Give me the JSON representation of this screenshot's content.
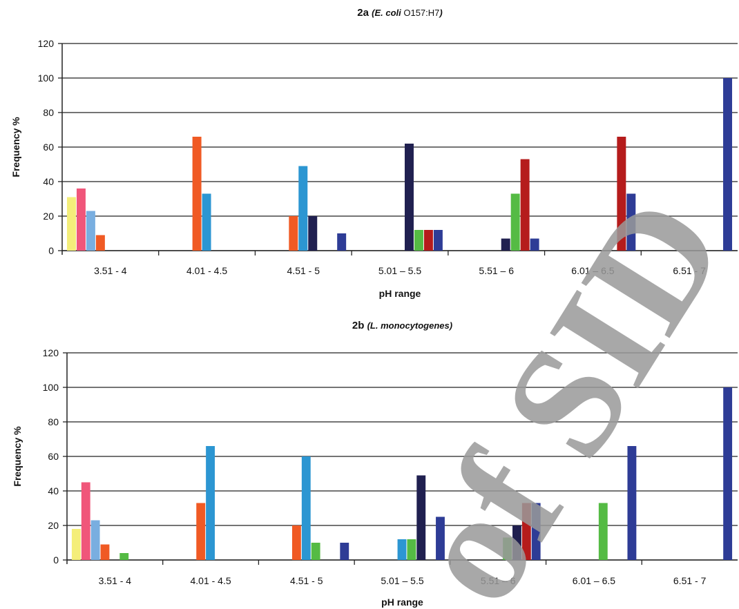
{
  "watermark": "of SID",
  "chart_data": [
    {
      "type": "bar",
      "title": "2a",
      "title_italic": "(E. coli",
      "title_regular": "O157:H7",
      "title_close": ")",
      "xlabel": "pH range",
      "ylabel": "Frequency %",
      "ylim": [
        0,
        120
      ],
      "yticks": [
        0,
        20,
        40,
        60,
        80,
        100,
        120
      ],
      "grid": true,
      "categories": [
        "3.51 - 4",
        "4.01 - 4.5",
        "4.51 - 5",
        "5.01 – 5.5",
        "5.51 – 6",
        "6.01 – 6.5",
        "6.51 - 7"
      ],
      "series": [
        {
          "color": "#f4ee7a",
          "values": [
            31,
            0,
            0,
            0,
            0,
            0,
            0
          ]
        },
        {
          "color": "#f0567a",
          "values": [
            36,
            0,
            0,
            0,
            0,
            0,
            0
          ]
        },
        {
          "color": "#79aee0",
          "values": [
            23,
            0,
            0,
            0,
            0,
            0,
            0
          ]
        },
        {
          "color": "#f05a24",
          "values": [
            9,
            66,
            20,
            0,
            0,
            0,
            0
          ]
        },
        {
          "color": "#2c96d2",
          "values": [
            0,
            33,
            49,
            0,
            0,
            0,
            0
          ]
        },
        {
          "color": "#202050",
          "values": [
            0,
            0,
            20,
            62,
            7,
            0,
            0
          ]
        },
        {
          "color": "#55bb44",
          "values": [
            0,
            0,
            0,
            12,
            33,
            0,
            0
          ]
        },
        {
          "color": "#b51c1c",
          "values": [
            0,
            0,
            0,
            12,
            53,
            66,
            0
          ]
        },
        {
          "color": "#2e3c96",
          "values": [
            0,
            0,
            10,
            12,
            7,
            33,
            100
          ]
        }
      ]
    },
    {
      "type": "bar",
      "title": "2b",
      "title_italic": "(L. monocytogenes)",
      "title_regular": "",
      "title_close": "",
      "xlabel": "pH range",
      "ylabel": "Frequency %",
      "ylim": [
        0,
        120
      ],
      "yticks": [
        0,
        20,
        40,
        60,
        80,
        100,
        120
      ],
      "grid": true,
      "categories": [
        "3.51 - 4",
        "4.01 - 4.5",
        "4.51 - 5",
        "5.01 – 5.5",
        "5.51 – 6",
        "6.01 – 6.5",
        "6.51 - 7"
      ],
      "series": [
        {
          "color": "#f4ee7a",
          "values": [
            18,
            0,
            0,
            0,
            0,
            0,
            0
          ]
        },
        {
          "color": "#f0567a",
          "values": [
            45,
            0,
            0,
            0,
            0,
            0,
            0
          ]
        },
        {
          "color": "#79aee0",
          "values": [
            23,
            0,
            0,
            0,
            0,
            0,
            0
          ]
        },
        {
          "color": "#f05a24",
          "values": [
            9,
            33,
            20,
            0,
            0,
            0,
            0
          ]
        },
        {
          "color": "#2c96d2",
          "values": [
            0,
            66,
            60,
            12,
            0,
            0,
            0
          ]
        },
        {
          "color": "#55bb44",
          "values": [
            4,
            0,
            10,
            12,
            13,
            33,
            0
          ]
        },
        {
          "color": "#202050",
          "values": [
            0,
            0,
            0,
            49,
            20,
            0,
            0
          ]
        },
        {
          "color": "#b51c1c",
          "values": [
            0,
            0,
            0,
            0,
            33,
            0,
            0
          ]
        },
        {
          "color": "#2e3c96",
          "values": [
            0,
            0,
            10,
            25,
            33,
            66,
            100
          ]
        }
      ]
    }
  ]
}
